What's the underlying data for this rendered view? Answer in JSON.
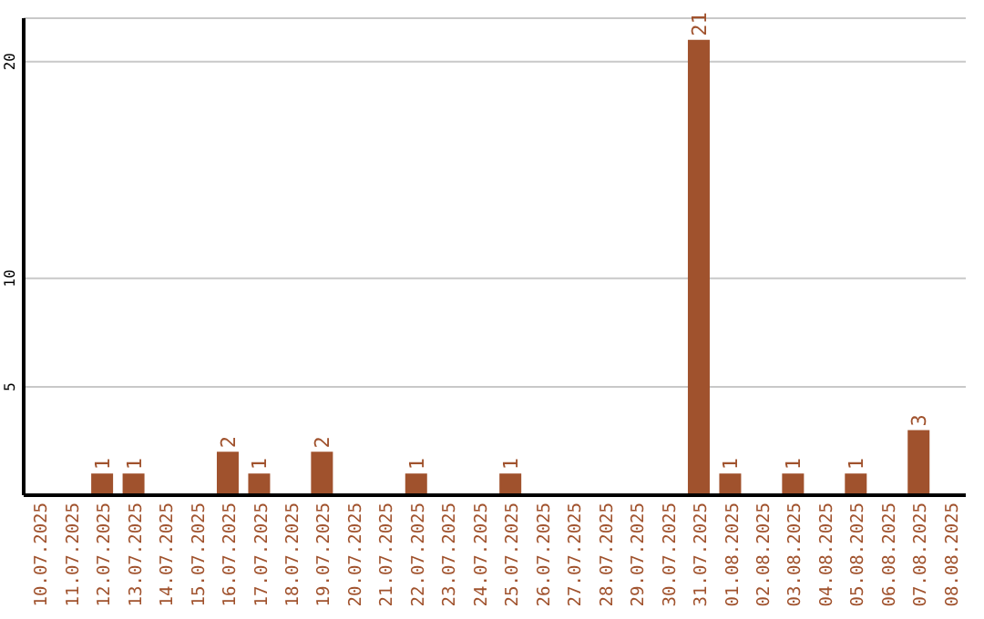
{
  "chart_data": {
    "type": "bar",
    "categories": [
      "10.07.2025",
      "11.07.2025",
      "12.07.2025",
      "13.07.2025",
      "14.07.2025",
      "15.07.2025",
      "16.07.2025",
      "17.07.2025",
      "18.07.2025",
      "19.07.2025",
      "20.07.2025",
      "21.07.2025",
      "22.07.2025",
      "23.07.2025",
      "24.07.2025",
      "25.07.2025",
      "26.07.2025",
      "27.07.2025",
      "28.07.2025",
      "29.07.2025",
      "30.07.2025",
      "31.07.2025",
      "01.08.2025",
      "02.08.2025",
      "03.08.2025",
      "04.08.2025",
      "05.08.2025",
      "06.08.2025",
      "07.08.2025",
      "08.08.2025"
    ],
    "values": [
      0,
      0,
      1,
      1,
      0,
      0,
      2,
      1,
      0,
      2,
      0,
      0,
      1,
      0,
      0,
      1,
      0,
      0,
      0,
      0,
      0,
      21,
      1,
      0,
      1,
      0,
      1,
      0,
      3,
      0
    ],
    "value_labels": [
      null,
      null,
      "1",
      "1",
      null,
      null,
      "2",
      "1",
      null,
      "2",
      null,
      null,
      "1",
      null,
      null,
      "1",
      null,
      null,
      null,
      null,
      null,
      "21",
      "1",
      null,
      "1",
      null,
      "1",
      null,
      "3",
      null
    ],
    "color": "#a0522d",
    "ylim": [
      0,
      22
    ],
    "yticks": [
      5,
      10,
      20
    ],
    "grid": "y"
  }
}
